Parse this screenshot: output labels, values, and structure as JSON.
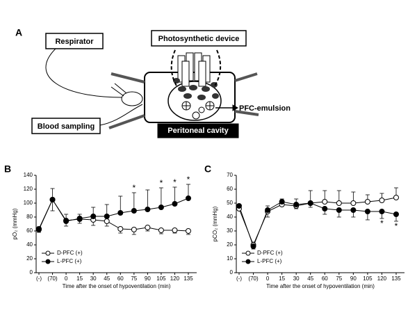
{
  "panel_a": {
    "label": "A",
    "respirator": "Respirator",
    "device": "Photosynthetic device",
    "blood": "Blood sampling",
    "cavity": "Peritoneal cavity",
    "emulsion": "PFC-emulsion"
  },
  "chart_data": [
    {
      "type": "line",
      "label": "B",
      "ylabel": "pO₂ (mmHg)",
      "xlabel": "Time after the onset of hypoventilation (min)",
      "categories": [
        "(-)",
        "(70)",
        "0",
        "15",
        "30",
        "45",
        "60",
        "75",
        "90",
        "105",
        "120",
        "135"
      ],
      "ylim": [
        0,
        140
      ],
      "yticks": [
        0,
        20,
        40,
        60,
        80,
        100,
        120,
        140
      ],
      "legend": "bottom-left",
      "series": [
        {
          "name": "D-PFC (+)",
          "color": "#ffffff",
          "error_direction": "down",
          "values": [
            63,
            105,
            75,
            77,
            76,
            74,
            63,
            62,
            65,
            61,
            61,
            60
          ],
          "errors": [
            5,
            16,
            8,
            6,
            8,
            7,
            6,
            7,
            5,
            5,
            4,
            5
          ]
        },
        {
          "name": "L-PFC (+)",
          "color": "#000000",
          "error_direction": "up",
          "values": [
            62,
            105,
            74,
            78,
            81,
            81,
            86,
            89,
            91,
            94,
            99,
            107
          ],
          "errors": [
            4,
            16,
            10,
            6,
            13,
            17,
            24,
            26,
            28,
            28,
            24,
            20
          ]
        }
      ],
      "markers": [
        {
          "at": 7,
          "label": "*",
          "position": "above"
        },
        {
          "at": 9,
          "label": "*",
          "position": "above"
        },
        {
          "at": 10,
          "label": "*",
          "position": "above"
        },
        {
          "at": 11,
          "label": "*",
          "position": "above"
        }
      ]
    },
    {
      "type": "line",
      "label": "C",
      "ylabel": "pCO₂ (mmHg)",
      "xlabel": "Time after the onset of hypoventilation (min)",
      "categories": [
        "(-)",
        "(70)",
        "0",
        "15",
        "30",
        "45",
        "60",
        "75",
        "90",
        "105",
        "120",
        "135"
      ],
      "ylim": [
        0,
        70
      ],
      "yticks": [
        0,
        10,
        20,
        30,
        40,
        50,
        60,
        70
      ],
      "legend": "bottom-left",
      "series": [
        {
          "name": "D-PFC (+)",
          "color": "#ffffff",
          "error_direction": "up",
          "values": [
            46,
            20,
            44,
            49,
            48,
            50,
            51,
            50,
            50,
            51,
            52,
            54
          ],
          "errors": [
            3,
            2,
            4,
            4,
            5,
            9,
            8,
            9,
            8,
            5,
            5,
            7
          ]
        },
        {
          "name": "L-PFC (+)",
          "color": "#000000",
          "error_direction": "down",
          "values": [
            48,
            19,
            45,
            51,
            49,
            50,
            46,
            45,
            45,
            44,
            44,
            42
          ],
          "errors": [
            3,
            2,
            5,
            2,
            3,
            3,
            4,
            5,
            5,
            6,
            5,
            5
          ]
        }
      ],
      "markers": [
        {
          "at": 10,
          "label": "*",
          "position": "below"
        },
        {
          "at": 11,
          "label": "*",
          "position": "below"
        }
      ]
    }
  ]
}
